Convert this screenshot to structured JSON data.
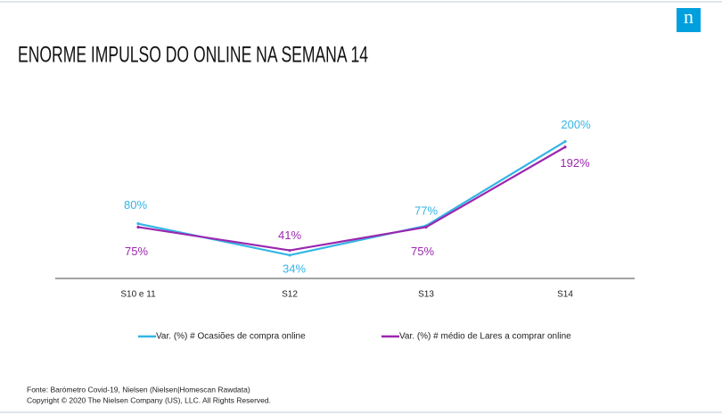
{
  "title": "ENORME IMPULSO DO ONLINE NA SEMANA 14",
  "logo": "n",
  "chart_data": {
    "type": "line",
    "categories": [
      "S10 e 11",
      "S12",
      "S13",
      "S14"
    ],
    "series": [
      {
        "name": "Var. (%) # Ocasiões de compra online",
        "color": "#33b5e5",
        "values": [
          80,
          34,
          77,
          200
        ],
        "value_labels": [
          "80%",
          "34%",
          "77%",
          "200%"
        ]
      },
      {
        "name": "Var. (%) # médio de Lares a comprar online",
        "color": "#9b27af",
        "values": [
          75,
          41,
          75,
          192
        ],
        "value_labels": [
          "75%",
          "41%",
          "75%",
          "192%"
        ]
      }
    ]
  },
  "footer": {
    "source": "Fonte: Barómetro Covid-19, Nielsen (Nielsen|Homescan Rawdata)",
    "copyright": "Copyright © 2020 The Nielsen Company (US), LLC. All Rights Reserved."
  }
}
